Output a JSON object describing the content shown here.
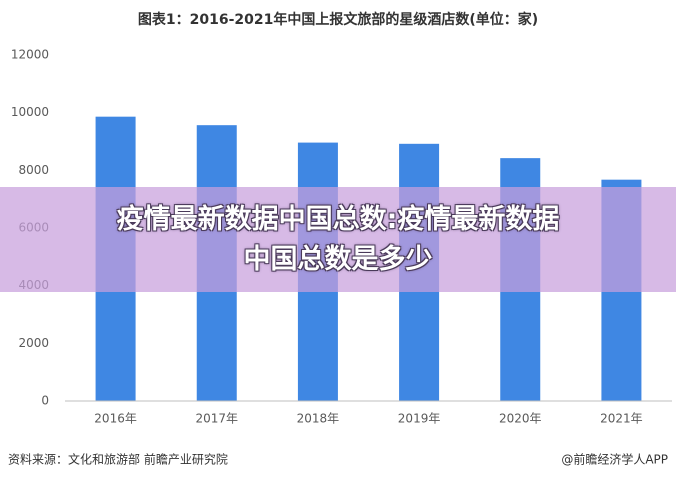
{
  "chart_data": {
    "type": "bar",
    "title": "图表1：2016-2021年中国上报文旅部的星级酒店数(单位：家)",
    "categories": [
      "2016年",
      "2017年",
      "2018年",
      "2019年",
      "2020年",
      "2021年"
    ],
    "values": [
      9861,
      9566,
      8962,
      8920,
      8423,
      7676
    ],
    "color": "#3f87e3",
    "ylim": [
      0,
      12000
    ],
    "yticks": [
      0,
      2000,
      4000,
      6000,
      8000,
      10000,
      12000
    ],
    "grid": false
  },
  "overlay": {
    "lines": [
      "疫情最新数据中国总数:疫情最新数据",
      "中国总数是多少"
    ]
  },
  "footer": {
    "source": "资料来源：文化和旅游部 前瞻产业研究院",
    "credit": "@前瞻经济学人APP"
  }
}
